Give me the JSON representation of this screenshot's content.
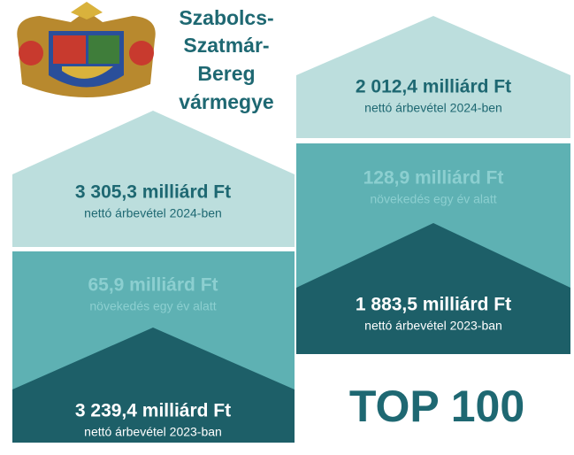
{
  "title": [
    "Szabolcs-",
    "Szatmár-",
    "Bereg",
    "vármegye"
  ],
  "county": {
    "revenue_2024": {
      "amount": "3 305,3 milliárd Ft",
      "caption": "nettó árbevétel 2024-ben"
    },
    "growth": {
      "amount": "65,9 milliárd Ft",
      "caption": "növekedés egy év alatt"
    },
    "revenue_2023": {
      "amount": "3 239,4 milliárd Ft",
      "caption": "nettó árbevétel 2023-ban"
    }
  },
  "top100": {
    "revenue_2024": {
      "amount": "2 012,4 milliárd Ft",
      "caption": "nettó árbevétel 2024-ben"
    },
    "growth": {
      "amount": "128,9 milliárd Ft",
      "caption": "növekedés egy év alatt"
    },
    "revenue_2023": {
      "amount": "1 883,5 milliárd Ft",
      "caption": "nettó árbevétel 2023-ban"
    }
  },
  "badge": "TOP 100"
}
